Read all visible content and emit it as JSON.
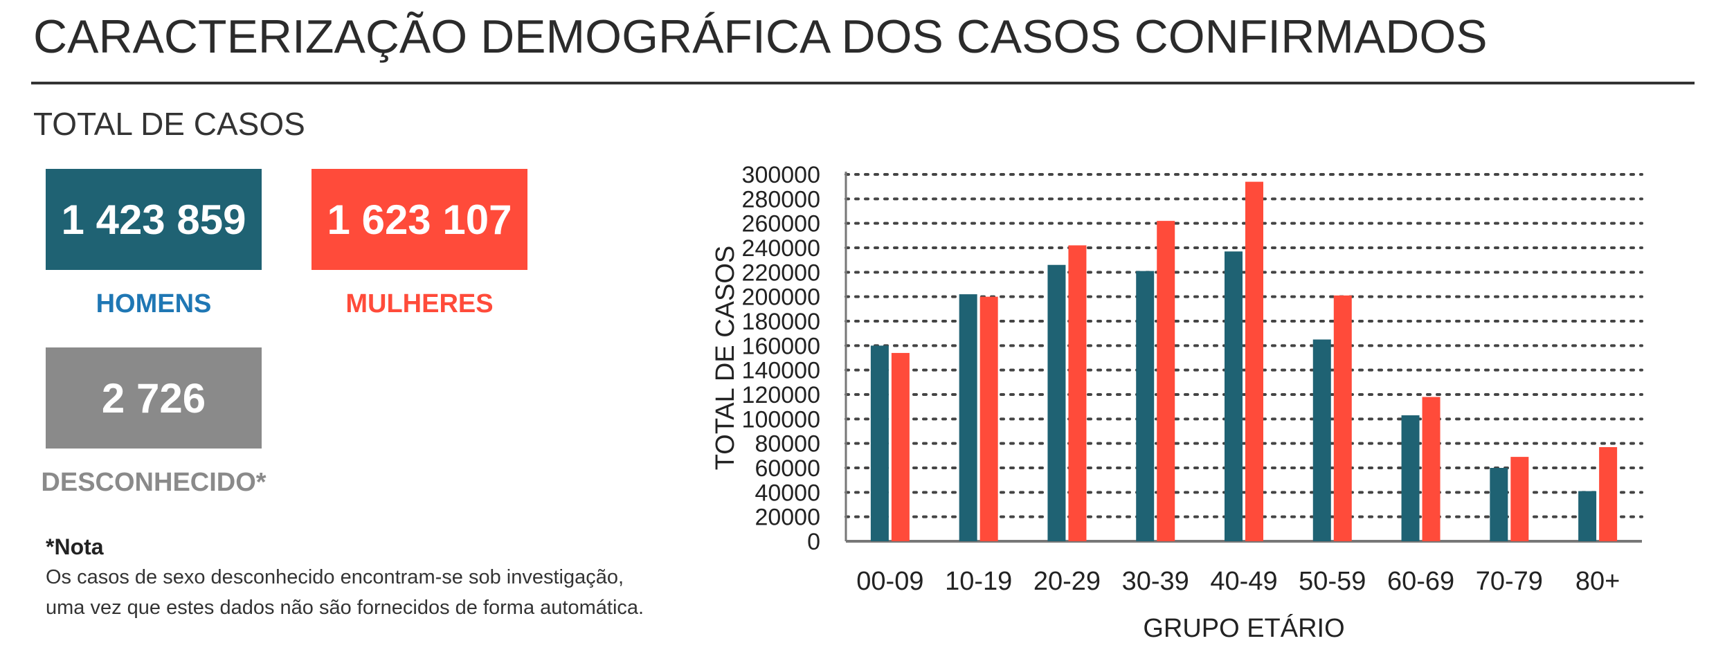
{
  "header": {
    "title": "CARACTERIZAÇÃO DEMOGRÁFICA DOS CASOS CONFIRMADOS",
    "subtitle": "TOTAL DE CASOS"
  },
  "stats": {
    "men": {
      "value": "1 423 859",
      "label": "HOMENS",
      "box_color": "#1f6273",
      "label_color": "#1f77b4"
    },
    "women": {
      "value": "1 623 107",
      "label": "MULHERES",
      "box_color": "#ff4b3a",
      "label_color": "#ff4b3a"
    },
    "unknown": {
      "value": "2 726",
      "label": "DESCONHECIDO*",
      "box_color": "#8a8a8a",
      "label_color": "#8a8a8a"
    }
  },
  "note": {
    "title": "*Nota",
    "line1": "Os casos de sexo desconhecido encontram-se sob investigação,",
    "line2": "uma vez que estes dados não são fornecidos de forma automática."
  },
  "chart_data": {
    "type": "bar",
    "categories": [
      "00-09",
      "10-19",
      "20-29",
      "30-39",
      "40-49",
      "50-59",
      "60-69",
      "70-79",
      "80+"
    ],
    "series": [
      {
        "values": [
          160000,
          202000,
          226000,
          221000,
          237000,
          165000,
          103000,
          60000,
          41000
        ],
        "color": "#1f6273"
      },
      {
        "values": [
          154000,
          200000,
          242000,
          262000,
          294000,
          201000,
          118000,
          69000,
          77000
        ],
        "color": "#ff4b3a"
      }
    ],
    "yticks": [
      "300000",
      "280000",
      "260000",
      "240000",
      "220000",
      "200000",
      "180000",
      "160000",
      "140000",
      "120000",
      "100000",
      "80000",
      "60000",
      "40000",
      "20000",
      "0"
    ],
    "ylim": [
      0,
      300000
    ],
    "xlabel": "GRUPO ETÁRIO",
    "ylabel": "TOTAL DE CASOS",
    "grid": true
  }
}
